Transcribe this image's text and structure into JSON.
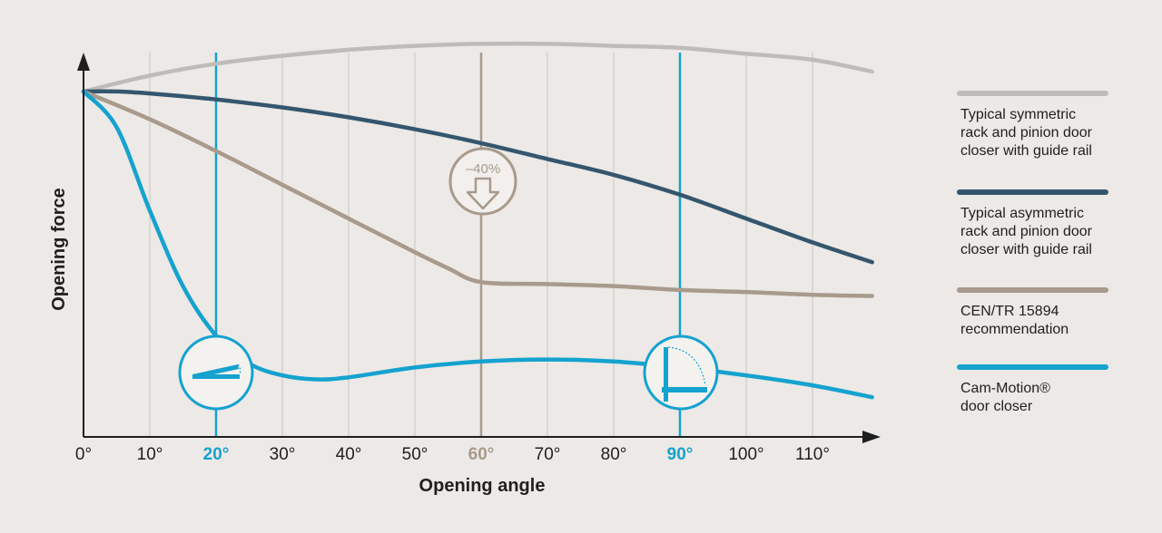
{
  "chart_data": {
    "type": "line",
    "xlabel": "Opening angle",
    "ylabel": "Opening force",
    "xlim": [
      0,
      120
    ],
    "ylim": [
      0,
      100
    ],
    "x_ticks": [
      "0°",
      "10°",
      "20°",
      "30°",
      "40°",
      "50°",
      "60°",
      "70°",
      "80°",
      "90°",
      "100°",
      "110°"
    ],
    "highlight_ticks": {
      "20°": "#15a2cf",
      "60°": "#a89a8c",
      "90°": "#15a2cf"
    },
    "grid_x": true,
    "legend_position": "right",
    "annotation": "–40%",
    "series": [
      {
        "name": "Typical symmetric rack and pinion door closer with guide rail",
        "legend_lines": [
          "Typical symmetric",
          "rack and pinion door",
          "closer with guide rail"
        ],
        "color": "#bebcbb",
        "x": [
          0,
          10,
          20,
          30,
          40,
          50,
          60,
          70,
          80,
          90,
          100,
          110,
          119
        ],
        "y": [
          87,
          91,
          94,
          96,
          97.5,
          98.5,
          99,
          99,
          98.5,
          98,
          96.5,
          95,
          92
        ]
      },
      {
        "name": "Typical asymmetric rack and pinion door closer with guide rail",
        "legend_lines": [
          "Typical asymmetric",
          "rack and pinion door",
          "closer with guide rail"
        ],
        "color": "#34566e",
        "x": [
          0,
          5,
          10,
          20,
          30,
          40,
          50,
          60,
          70,
          80,
          90,
          100,
          110,
          119
        ],
        "y": [
          87,
          87,
          86.5,
          85,
          83,
          80.5,
          77.5,
          74,
          70,
          66,
          61,
          55,
          49,
          44
        ]
      },
      {
        "name": "CEN/TR 15894 recommendation",
        "legend_lines": [
          "CEN/TR 15894",
          "recommendation"
        ],
        "color": "#a89a8c",
        "x": [
          0,
          10,
          20,
          30,
          40,
          50,
          55,
          60,
          70,
          80,
          90,
          100,
          110,
          119
        ],
        "y": [
          87,
          80,
          72,
          63.5,
          55,
          46.5,
          42.5,
          39,
          38.5,
          38,
          37,
          36.5,
          35.8,
          35.5
        ]
      },
      {
        "name": "Cam-Motion® door closer",
        "legend_lines": [
          "Cam-Motion®",
          "door closer"
        ],
        "color": "#15a2cf",
        "x": [
          0,
          5,
          10,
          15,
          20,
          25,
          30,
          35,
          40,
          50,
          60,
          70,
          80,
          90,
          100,
          110,
          119
        ],
        "y": [
          87,
          78,
          57,
          38,
          25.5,
          18.5,
          15.5,
          14.5,
          15,
          17.5,
          19,
          19.5,
          19,
          17.5,
          15.5,
          13,
          10
        ]
      }
    ]
  }
}
